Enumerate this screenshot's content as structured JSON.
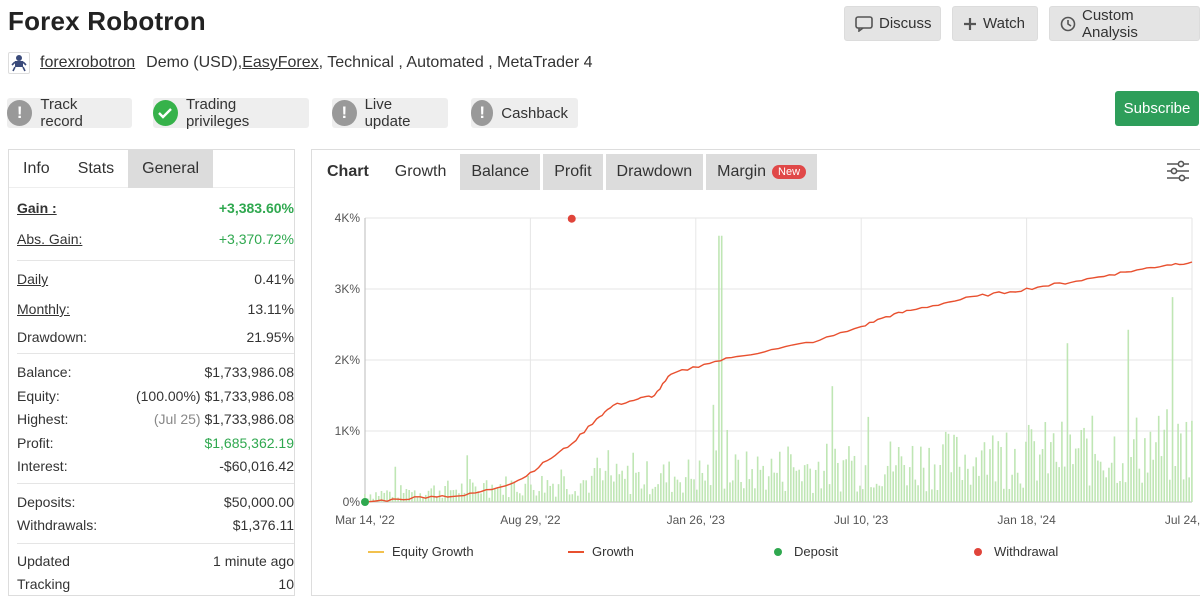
{
  "header": {
    "title": "Forex Robotron",
    "buttons": {
      "discuss": "Discuss",
      "watch": "Watch",
      "custom": "Custom Analysis"
    }
  },
  "subline": {
    "owner": "forexrobotron",
    "demo": "Demo (USD), ",
    "broker": "EasyForex",
    "rest": " , Technical , Automated , MetaTrader 4"
  },
  "badges": {
    "track": "Track record",
    "trading": "Trading privileges",
    "live": "Live update",
    "cashback": "Cashback"
  },
  "subscribe": "Subscribe",
  "left_tabs": [
    "Info",
    "Stats",
    "General"
  ],
  "stats": {
    "gain_label": "Gain :",
    "gain": "+3,383.60%",
    "abs_label": "Abs. Gain:",
    "abs": "+3,370.72%",
    "daily_label": "Daily",
    "daily": "0.41%",
    "monthly_label": "Monthly:",
    "monthly": "13.11%",
    "drawdown_label": "Drawdown:",
    "drawdown": "21.95%",
    "balance_label": "Balance:",
    "balance": "$1,733,986.08",
    "equity_label": "Equity:",
    "equity_pct": "(100.00%)",
    "equity": "$1,733,986.08",
    "highest_label": "Highest:",
    "highest_date": "(Jul 25)",
    "highest": "$1,733,986.08",
    "profit_label": "Profit:",
    "profit": "$1,685,362.19",
    "interest_label": "Interest:",
    "interest": "-$60,016.42",
    "deposits_label": "Deposits:",
    "deposits": "$50,000.00",
    "withdrawals_label": "Withdrawals:",
    "withdrawals": "$1,376.11",
    "updated_label": "Updated",
    "updated": "1 minute ago",
    "tracking_label": "Tracking",
    "tracking": "10"
  },
  "chart_tabs": {
    "chart": "Chart",
    "growth": "Growth",
    "balance": "Balance",
    "profit": "Profit",
    "drawdown": "Drawdown",
    "margin": "Margin",
    "new": "New"
  },
  "legend": {
    "equity": "Equity Growth",
    "growth": "Growth",
    "deposit": "Deposit",
    "withdrawal": "Withdrawal"
  },
  "colors": {
    "growth": "#e8502f",
    "equity": "#f2c14e",
    "deposit": "#2fa84f",
    "withdrawal": "#e0443a",
    "bars": "#bfe6b4"
  },
  "chart_data": {
    "type": "line",
    "x_ticks": [
      "Mar 14, '22",
      "Aug 29, '22",
      "Jan 26, '23",
      "Jul 10, '23",
      "Jan 18, '24",
      "Jul 24, '24"
    ],
    "y_ticks": [
      "0%",
      "1K%",
      "2K%",
      "3K%",
      "4K%"
    ],
    "ylim": [
      0,
      4000
    ],
    "series": [
      {
        "name": "Growth",
        "x": [
          0,
          0.04,
          0.08,
          0.12,
          0.16,
          0.19,
          0.22,
          0.25,
          0.28,
          0.3,
          0.33,
          0.35,
          0.37,
          0.41,
          0.45,
          0.5,
          0.55,
          0.6,
          0.63,
          0.66,
          0.7,
          0.74,
          0.78,
          0.82,
          0.86,
          0.9,
          0.94,
          0.97,
          1
        ],
        "y": [
          0,
          40,
          80,
          90,
          200,
          330,
          580,
          820,
          1170,
          1360,
          1450,
          1500,
          1800,
          1940,
          2050,
          2160,
          2280,
          2470,
          2610,
          2700,
          2800,
          2900,
          2960,
          3040,
          3110,
          3200,
          3280,
          3340,
          3380
        ]
      }
    ],
    "withdrawal": {
      "x": 0.25,
      "y": 3990
    },
    "deposit": {
      "x": 0,
      "y": 0
    },
    "bars_max": 3750
  }
}
